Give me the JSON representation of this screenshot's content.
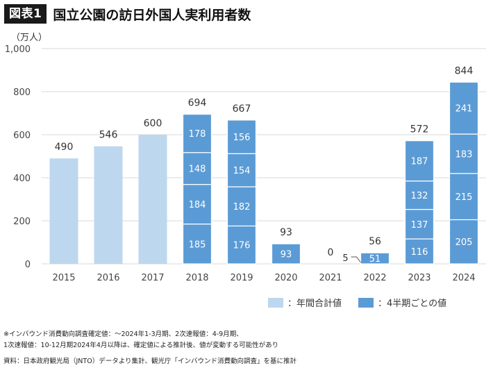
{
  "header": {
    "badge": "図表1",
    "title": "国立公園の訪日外国人実利用者数"
  },
  "chart_data": {
    "type": "bar",
    "unit_label": "（万人）",
    "categories": [
      "2015",
      "2016",
      "2017",
      "2018",
      "2019",
      "2020",
      "2021",
      "2022",
      "2023",
      "2024"
    ],
    "annual_values": [
      490,
      546,
      600,
      null,
      null,
      null,
      null,
      null,
      null,
      null
    ],
    "quarterly_stacks": [
      null,
      null,
      null,
      [
        185,
        184,
        148,
        178
      ],
      [
        176,
        182,
        154,
        156
      ],
      [
        93
      ],
      [],
      [
        51
      ],
      [
        116,
        137,
        132,
        187
      ],
      [
        205,
        215,
        183,
        241
      ]
    ],
    "totals": [
      "490",
      "546",
      "600",
      "694",
      "667",
      "93",
      "0",
      "56",
      "572",
      "844"
    ],
    "callout_2022": "5",
    "ylim": [
      0,
      1000
    ],
    "y_ticks": [
      "0",
      "200",
      "400",
      "600",
      "800",
      "1,000"
    ],
    "y_tick_values": [
      0,
      200,
      400,
      600,
      800,
      1000
    ],
    "grid": true,
    "legend": [
      {
        "label": "：年間合計値",
        "color": "#bdd7ee"
      },
      {
        "label": "：4半期ごとの値",
        "color": "#5b9bd5"
      }
    ]
  },
  "notes": {
    "line1": "※インバウンド消費動向調査確定値：～2024年1-3月期、2次速報値：4-9月期、",
    "line2": "1次速報値：10-12月期2024年4月以降は、確定値による推計後、値が変動する可能性があり"
  },
  "source": "資料：日本政府観光局（JNTO）データより集計、観光庁「インバウンド消費動向調査」を基に推計"
}
